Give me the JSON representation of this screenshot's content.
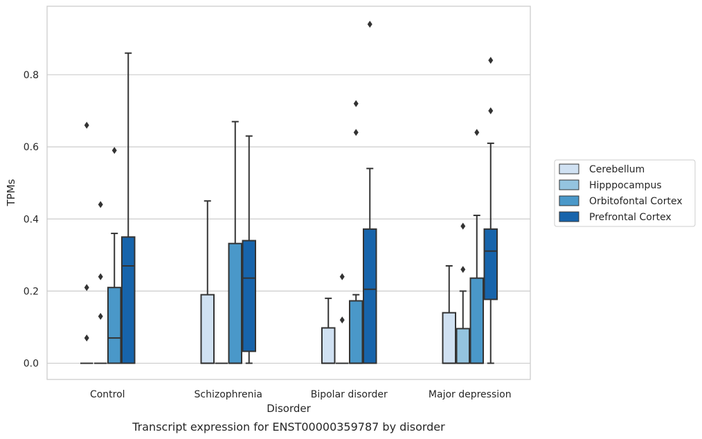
{
  "chart_data": {
    "type": "box",
    "caption": "Transcript expression for ENST00000359787 by disorder",
    "xlabel": "Disorder",
    "ylabel": "TPMs",
    "ylim": [
      -0.045,
      0.99
    ],
    "yticks": [
      0.0,
      0.2,
      0.4,
      0.6,
      0.8
    ],
    "ytick_labels": [
      "0.0",
      "0.2",
      "0.4",
      "0.6",
      "0.8"
    ],
    "grid": "horizontal",
    "legend_position": "right",
    "categories": [
      "Control",
      "Schizophrenia",
      "Bipolar disorder",
      "Major depression"
    ],
    "series": [
      {
        "name": "Cerebellum",
        "color": "#d0e1f2",
        "boxes": [
          {
            "q1": 0.0,
            "median": 0.0,
            "q3": 0.0,
            "whisker_low": 0.0,
            "whisker_high": 0.0,
            "outliers": [
              0.07,
              0.21,
              0.66
            ]
          },
          {
            "q1": 0.0,
            "median": 0.0,
            "q3": 0.19,
            "whisker_low": 0.0,
            "whisker_high": 0.45,
            "outliers": []
          },
          {
            "q1": 0.0,
            "median": 0.0,
            "q3": 0.098,
            "whisker_low": 0.0,
            "whisker_high": 0.18,
            "outliers": []
          },
          {
            "q1": 0.0,
            "median": 0.0,
            "q3": 0.14,
            "whisker_low": 0.0,
            "whisker_high": 0.27,
            "outliers": []
          }
        ]
      },
      {
        "name": "Hipppocampus",
        "color": "#94c4df",
        "boxes": [
          {
            "q1": 0.0,
            "median": 0.0,
            "q3": 0.0,
            "whisker_low": 0.0,
            "whisker_high": 0.0,
            "outliers": [
              0.13,
              0.24,
              0.44
            ]
          },
          {
            "q1": 0.0,
            "median": 0.0,
            "q3": 0.0,
            "whisker_low": 0.0,
            "whisker_high": 0.0,
            "outliers": []
          },
          {
            "q1": 0.0,
            "median": 0.0,
            "q3": 0.0,
            "whisker_low": 0.0,
            "whisker_high": 0.0,
            "outliers": [
              0.12,
              0.24
            ]
          },
          {
            "q1": 0.0,
            "median": 0.0,
            "q3": 0.096,
            "whisker_low": 0.0,
            "whisker_high": 0.2,
            "outliers": [
              0.26,
              0.38
            ]
          }
        ]
      },
      {
        "name": "Orbitofontal Cortex",
        "color": "#4a98c9",
        "boxes": [
          {
            "q1": 0.0,
            "median": 0.07,
            "q3": 0.21,
            "whisker_low": 0.0,
            "whisker_high": 0.36,
            "outliers": [
              0.59
            ]
          },
          {
            "q1": 0.0,
            "median": 0.0,
            "q3": 0.332,
            "whisker_low": 0.0,
            "whisker_high": 0.67,
            "outliers": []
          },
          {
            "q1": 0.0,
            "median": 0.0,
            "q3": 0.173,
            "whisker_low": 0.0,
            "whisker_high": 0.19,
            "outliers": [
              0.64,
              0.72
            ]
          },
          {
            "q1": 0.0,
            "median": 0.0,
            "q3": 0.236,
            "whisker_low": 0.0,
            "whisker_high": 0.41,
            "outliers": [
              0.64
            ]
          }
        ]
      },
      {
        "name": "Prefrontal Cortex",
        "color": "#1764ab",
        "boxes": [
          {
            "q1": 0.0,
            "median": 0.27,
            "q3": 0.35,
            "whisker_low": 0.0,
            "whisker_high": 0.86,
            "outliers": []
          },
          {
            "q1": 0.033,
            "median": 0.236,
            "q3": 0.34,
            "whisker_low": 0.0,
            "whisker_high": 0.63,
            "outliers": []
          },
          {
            "q1": 0.0,
            "median": 0.205,
            "q3": 0.372,
            "whisker_low": 0.0,
            "whisker_high": 0.54,
            "outliers": [
              0.94
            ]
          },
          {
            "q1": 0.177,
            "median": 0.311,
            "q3": 0.372,
            "whisker_low": 0.0,
            "whisker_high": 0.61,
            "outliers": [
              0.7,
              0.84
            ]
          }
        ]
      }
    ]
  }
}
